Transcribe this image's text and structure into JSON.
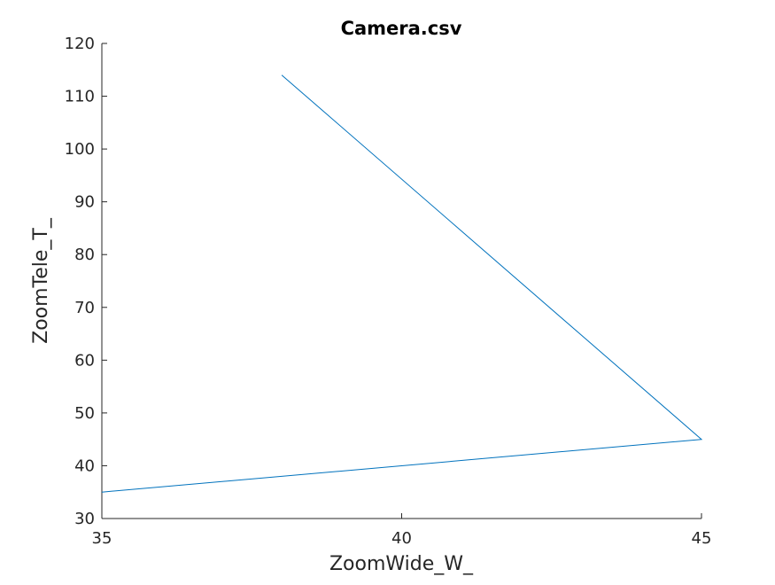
{
  "chart_data": {
    "type": "line",
    "title": "Camera.csv",
    "xlabel": "ZoomWide_W_",
    "ylabel": "ZoomTele_T_",
    "xlim": [
      35,
      45
    ],
    "ylim": [
      30,
      120
    ],
    "xticks": [
      35,
      40,
      45
    ],
    "yticks": [
      30,
      40,
      50,
      60,
      70,
      80,
      90,
      100,
      110,
      120
    ],
    "grid": false,
    "series": [
      {
        "x": [
          35,
          45,
          38
        ],
        "y": [
          35,
          45,
          114
        ]
      }
    ]
  },
  "colors": {
    "line": "#0072BD",
    "axis": "#262626",
    "background": "#ffffff"
  }
}
